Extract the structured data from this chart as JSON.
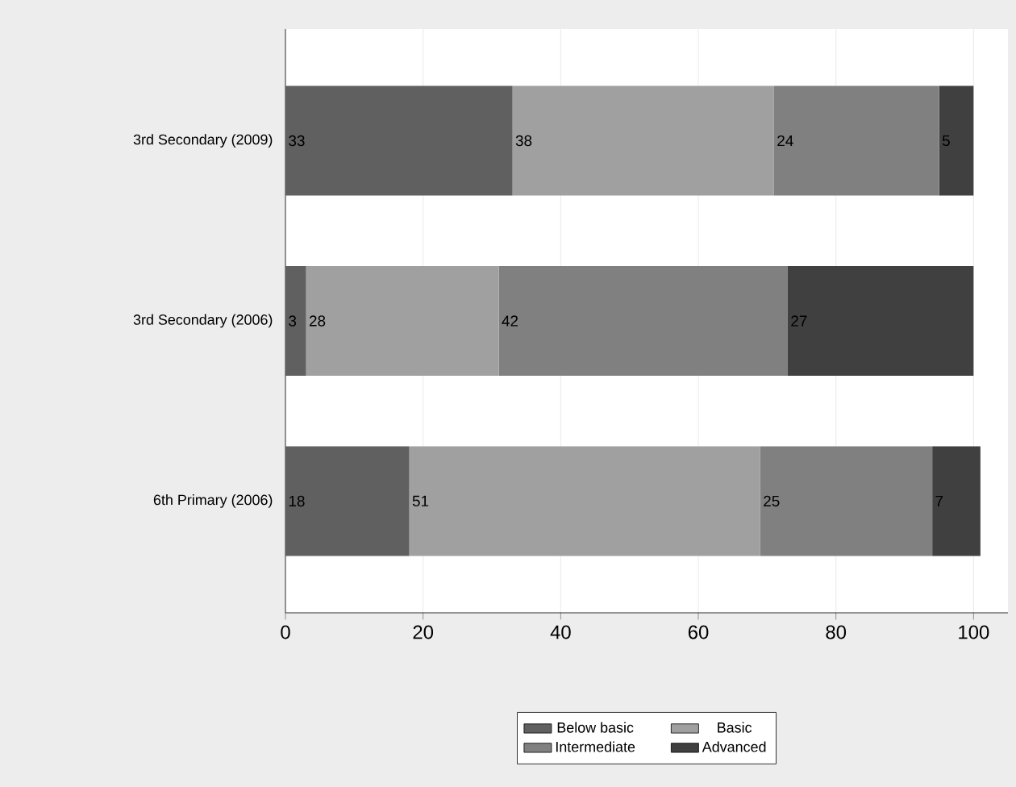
{
  "chart_data": {
    "type": "bar",
    "orientation": "horizontal",
    "stacked": true,
    "data_labels": true,
    "grid": "x",
    "legend": "bottom",
    "categories": [
      "3rd Secondary (2009)",
      "3rd Secondary (2006)",
      "6th Primary (2006)"
    ],
    "xlim": [
      0,
      105
    ],
    "xticks": [
      0,
      20,
      40,
      60,
      80,
      100
    ],
    "series": [
      {
        "name": "Below basic",
        "color": "#606060",
        "values": [
          33,
          3,
          18
        ]
      },
      {
        "name": "Basic",
        "color": "#a0a0a0",
        "values": [
          38,
          28,
          51
        ]
      },
      {
        "name": "Intermediate",
        "color": "#808080",
        "values": [
          24,
          42,
          25
        ]
      },
      {
        "name": "Advanced",
        "color": "#404040",
        "values": [
          5,
          27,
          7
        ]
      }
    ]
  }
}
